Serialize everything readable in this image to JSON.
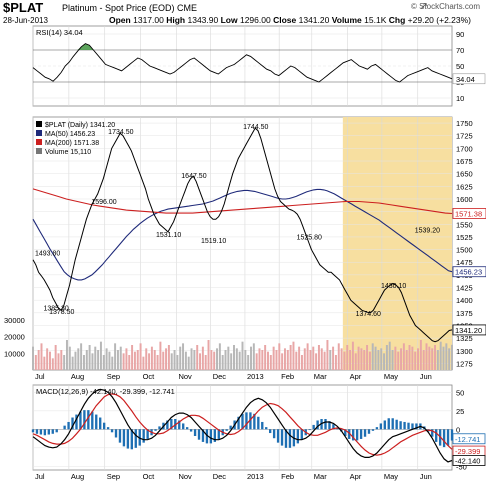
{
  "header": {
    "symbol": "$PLAT",
    "subtitle": "Platinum  - Spot Price (EOD)  CME",
    "date": "28-Jun-2013",
    "open_label": "Open",
    "open": "1317.00",
    "high_label": "High",
    "high": "1343.90",
    "low_label": "Low",
    "low": "1296.00",
    "close_label": "Close",
    "close": "1341.20",
    "volume_label": "Volume",
    "volume": "15.1K",
    "chg_label": "Chg",
    "chg": "+29.20 (+2.23%)",
    "brand": "© StockCharts.com",
    "brand_icon": "arrow-up-icon"
  },
  "colors": {
    "price": "#000000",
    "ma50": "#1f2a7a",
    "ma200": "#cc1f1f",
    "highlight": "#f7dfa0",
    "volume_up": "#b7b7b7",
    "volume_down": "#e8a6a6",
    "macd_hist": "#1e6fb3",
    "rsi_fill_green": "#4a9a4a",
    "rsi_fill_red": "#d04545"
  },
  "chart_data": [
    {
      "type": "line",
      "panel": "rsi",
      "legend": "RSI(14) 34.04",
      "ylim": [
        0,
        100
      ],
      "y_ticks": [
        10,
        30,
        50,
        70,
        90
      ],
      "levels": [
        30,
        70
      ],
      "values": [
        48,
        44,
        40,
        36,
        34,
        31,
        36,
        42,
        50,
        55,
        62,
        68,
        74,
        78,
        76,
        70,
        64,
        58,
        52,
        50,
        48,
        46,
        44,
        48,
        52,
        56,
        60,
        58,
        54,
        50,
        48,
        46,
        44,
        42,
        40,
        42,
        46,
        50,
        54,
        58,
        60,
        56,
        52,
        48,
        44,
        42,
        40,
        44,
        48,
        50,
        52,
        56,
        60,
        64,
        62,
        58,
        54,
        50,
        46,
        44,
        40,
        38,
        42,
        46,
        50,
        48,
        44,
        40,
        36,
        34,
        32,
        30,
        34,
        38,
        42,
        46,
        50,
        54,
        56,
        58,
        54,
        50,
        48,
        46,
        50,
        52,
        48,
        44,
        40,
        36,
        32,
        30,
        34,
        38,
        40,
        42,
        44,
        46,
        48,
        44,
        42,
        40,
        38,
        36,
        34
      ],
      "last_label": "34.04"
    },
    {
      "type": "line",
      "panel": "price",
      "legend": "$PLAT (Daily) 1341.20",
      "ylim": [
        1262,
        1762
      ],
      "y_ticks": [
        1275,
        1300,
        1325,
        1350,
        1375,
        1400,
        1425,
        1450,
        1475,
        1500,
        1525,
        1550,
        1575,
        1600,
        1625,
        1650,
        1675,
        1700,
        1725,
        1750
      ],
      "x_labels": [
        "Jul",
        "Aug",
        "Sep",
        "Oct",
        "Nov",
        "Dec",
        "2013",
        "Feb",
        "Mar",
        "Apr",
        "May",
        "Jun"
      ],
      "x_label_positions": [
        0,
        22,
        44,
        66,
        88,
        109,
        130,
        151,
        171,
        193,
        214,
        236
      ],
      "n": 262,
      "values": [
        1480,
        1470,
        1455,
        1448,
        1440,
        1430,
        1420,
        1405,
        1395,
        1385,
        1380,
        1390,
        1410,
        1430,
        1455,
        1480,
        1500,
        1520,
        1540,
        1560,
        1575,
        1590,
        1600,
        1610,
        1625,
        1640,
        1660,
        1680,
        1700,
        1710,
        1720,
        1730,
        1725,
        1715,
        1705,
        1695,
        1680,
        1665,
        1650,
        1635,
        1620,
        1600,
        1585,
        1570,
        1560,
        1550,
        1545,
        1540,
        1535,
        1545,
        1555,
        1570,
        1585,
        1600,
        1615,
        1630,
        1640,
        1645,
        1635,
        1620,
        1605,
        1590,
        1575,
        1565,
        1560,
        1560,
        1565,
        1575,
        1590,
        1610,
        1630,
        1650,
        1665,
        1680,
        1690,
        1700,
        1710,
        1720,
        1730,
        1740,
        1735,
        1720,
        1700,
        1680,
        1660,
        1640,
        1620,
        1605,
        1595,
        1590,
        1585,
        1580,
        1578,
        1575,
        1570,
        1560,
        1545,
        1530,
        1515,
        1500,
        1490,
        1480,
        1470,
        1465,
        1460,
        1455,
        1455,
        1450,
        1445,
        1440,
        1430,
        1420,
        1410,
        1400,
        1395,
        1390,
        1385,
        1380,
        1378,
        1376,
        1375,
        1380,
        1390,
        1400,
        1410,
        1420,
        1425,
        1430,
        1433,
        1430,
        1425,
        1415,
        1400,
        1385,
        1370,
        1360,
        1350,
        1345,
        1340,
        1335,
        1330,
        1325,
        1320,
        1318,
        1320,
        1325,
        1330,
        1335,
        1340,
        1341.2
      ],
      "series": [
        {
          "name": "MA(50) 1456.23",
          "values": [
            1560,
            1548,
            1536,
            1524,
            1512,
            1500,
            1489,
            1478,
            1467,
            1456,
            1450,
            1445,
            1442,
            1440,
            1440,
            1442,
            1446,
            1450,
            1456,
            1463,
            1470,
            1478,
            1486,
            1494,
            1502,
            1510,
            1518,
            1526,
            1533,
            1540,
            1546,
            1552,
            1557,
            1562,
            1566,
            1570,
            1573,
            1576,
            1578,
            1580,
            1581,
            1582,
            1583,
            1584,
            1585,
            1586,
            1587,
            1588,
            1589,
            1590,
            1592,
            1594,
            1596,
            1599,
            1602,
            1605,
            1608,
            1611,
            1613,
            1615,
            1616,
            1617,
            1617,
            1616,
            1615,
            1613,
            1611,
            1609,
            1607,
            1605,
            1603,
            1601,
            1600,
            1600,
            1601,
            1603,
            1605,
            1608,
            1611,
            1614,
            1616,
            1618,
            1619,
            1619,
            1618,
            1616,
            1613,
            1610,
            1606,
            1602,
            1598,
            1594,
            1590,
            1586,
            1582,
            1578,
            1574,
            1570,
            1566,
            1562,
            1558,
            1553,
            1548,
            1543,
            1538,
            1533,
            1528,
            1523,
            1518,
            1513,
            1508,
            1503,
            1498,
            1493,
            1488,
            1483,
            1478,
            1473,
            1468,
            1463,
            1458,
            1456.23
          ]
        },
        {
          "name": "MA(200) 1571.38",
          "values": [
            1620,
            1616,
            1612,
            1608,
            1604,
            1600,
            1597,
            1594,
            1591,
            1588,
            1586,
            1584,
            1582,
            1580,
            1578,
            1577,
            1576,
            1575,
            1574,
            1573,
            1572,
            1572,
            1572,
            1572,
            1572,
            1573,
            1574,
            1575,
            1576,
            1577,
            1578,
            1579,
            1580,
            1581,
            1582,
            1583,
            1584,
            1585,
            1586,
            1587,
            1588,
            1589,
            1590,
            1591,
            1592,
            1593,
            1594,
            1595,
            1595,
            1595,
            1594,
            1593,
            1592,
            1590,
            1588,
            1586,
            1584,
            1582,
            1580,
            1578,
            1576,
            1574,
            1572,
            1571.38
          ]
        }
      ],
      "highlight_range": [
        193,
        262
      ],
      "annotations": [
        {
          "label": "1493.80",
          "i": 2
        },
        {
          "label": "1385.30",
          "i": 8
        },
        {
          "label": "1378.50",
          "i": 10
        },
        {
          "label": "1596.00",
          "i": 25
        },
        {
          "label": "1734.50",
          "i": 31
        },
        {
          "label": "1531.10",
          "i": 48
        },
        {
          "label": "1647.50",
          "i": 57
        },
        {
          "label": "1519.10",
          "i": 64
        },
        {
          "label": "1744.50",
          "i": 79
        },
        {
          "label": "1525.80",
          "i": 98
        },
        {
          "label": "1374.60",
          "i": 119
        },
        {
          "label": "1430.10",
          "i": 128
        },
        {
          "label": "1539.20",
          "i": 140
        }
      ],
      "right_labels": [
        "1571.38",
        "1456.23",
        "1341.20"
      ],
      "volume_legend": "Volume 15,110",
      "volume_ticks": [
        {
          "label": "30000",
          "v": 30000
        },
        {
          "label": "20000",
          "v": 20000
        },
        {
          "label": "10000",
          "v": 10000
        }
      ],
      "volume_ylim": [
        0,
        42000
      ],
      "volume_values": [
        14000,
        9000,
        12000,
        16000,
        8000,
        13000,
        11000,
        7000,
        15000,
        10000,
        12000,
        9000,
        18000,
        14000,
        8000,
        11000,
        13000,
        16000,
        9000,
        12000,
        15000,
        10000,
        14000,
        12000,
        17000,
        9000,
        13000,
        11000,
        8000,
        16000,
        12000,
        14000,
        10000,
        13000,
        9000,
        15000,
        11000,
        12000,
        16000,
        8000,
        13000,
        10000,
        14000,
        12000,
        9000,
        17000,
        11000,
        13000,
        15000,
        10000,
        12000,
        9000,
        14000,
        16000,
        11000,
        8000,
        13000,
        12000,
        15000,
        10000,
        14000,
        9000,
        18000,
        12000,
        11000,
        13000,
        16000,
        9000,
        12000,
        14000,
        10000,
        15000,
        13000,
        11000,
        17000,
        12000,
        9000,
        14000,
        16000,
        10000,
        13000,
        12000,
        15000,
        11000,
        9000,
        14000,
        12000,
        16000,
        10000,
        13000,
        12000,
        15000,
        17000,
        11000,
        14000,
        9000,
        13000,
        16000,
        12000,
        14000,
        10000,
        15000,
        13000,
        11000,
        18000,
        12000,
        14000,
        9000,
        16000,
        13000,
        11000,
        15000,
        12000,
        17000,
        10000,
        14000,
        13000,
        12000,
        15000,
        11000,
        16000,
        14000,
        12000,
        13000,
        10000,
        15000,
        17000,
        12000,
        14000,
        11000,
        13000,
        16000,
        12000,
        15000,
        14000,
        11000,
        13000,
        18000,
        12000,
        16000,
        14000,
        13000,
        15000,
        12000,
        17000,
        14000,
        16000,
        13000,
        15110
      ]
    },
    {
      "type": "line",
      "panel": "macd",
      "legend": "MACD(12,26,9) -42.140, -29.399, -12.741",
      "ylim": [
        -55,
        60
      ],
      "y_ticks": [
        50,
        25,
        0,
        -25,
        -50
      ],
      "series": [
        {
          "name": "MACD",
          "values": [
            -10,
            -14,
            -18,
            -22,
            -24,
            -25,
            -24,
            -20,
            -14,
            -6,
            4,
            14,
            24,
            34,
            42,
            48,
            52,
            54,
            53,
            50,
            44,
            36,
            26,
            16,
            6,
            -2,
            -8,
            -12,
            -14,
            -14,
            -12,
            -8,
            -2,
            4,
            10,
            16,
            20,
            22,
            22,
            20,
            16,
            10,
            4,
            -2,
            -8,
            -12,
            -14,
            -14,
            -12,
            -8,
            -2,
            6,
            14,
            22,
            30,
            36,
            40,
            42,
            40,
            36,
            30,
            22,
            14,
            6,
            -2,
            -8,
            -12,
            -14,
            -14,
            -12,
            -8,
            -2,
            4,
            8,
            10,
            10,
            8,
            4,
            -2,
            -10,
            -18,
            -26,
            -32,
            -36,
            -38,
            -38,
            -36,
            -32,
            -26,
            -20,
            -14,
            -10,
            -8,
            -6,
            -4,
            -2,
            0,
            2,
            4,
            2,
            -4,
            -12,
            -22,
            -32,
            -40,
            -44,
            -42.14
          ]
        },
        {
          "name": "Signal",
          "values": [
            -6,
            -8,
            -11,
            -14,
            -17,
            -19,
            -20,
            -20,
            -19,
            -16,
            -12,
            -6,
            0,
            8,
            16,
            24,
            32,
            38,
            44,
            47,
            48,
            47,
            44,
            39,
            32,
            25,
            17,
            10,
            4,
            -1,
            -4,
            -6,
            -6,
            -5,
            -2,
            2,
            6,
            10,
            14,
            17,
            19,
            19,
            18,
            15,
            11,
            7,
            3,
            -1,
            -4,
            -6,
            -7,
            -6,
            -3,
            1,
            7,
            13,
            19,
            25,
            30,
            33,
            35,
            34,
            32,
            28,
            23,
            17,
            11,
            5,
            0,
            -4,
            -7,
            -8,
            -8,
            -6,
            -4,
            -1,
            1,
            2,
            1,
            -1,
            -5,
            -11,
            -17,
            -23,
            -28,
            -32,
            -34,
            -35,
            -34,
            -32,
            -29,
            -25,
            -21,
            -17,
            -14,
            -11,
            -8,
            -6,
            -4,
            -2,
            -1,
            -2,
            -5,
            -10,
            -16,
            -22,
            -27,
            -29.399
          ]
        }
      ],
      "right_labels": [
        "-12.741",
        "-29.399",
        "-42.140"
      ],
      "x_labels": [
        "Jul",
        "Aug",
        "Sep",
        "Oct",
        "Nov",
        "Dec",
        "2013",
        "Feb",
        "Mar",
        "Apr",
        "May",
        "Jun"
      ]
    }
  ]
}
